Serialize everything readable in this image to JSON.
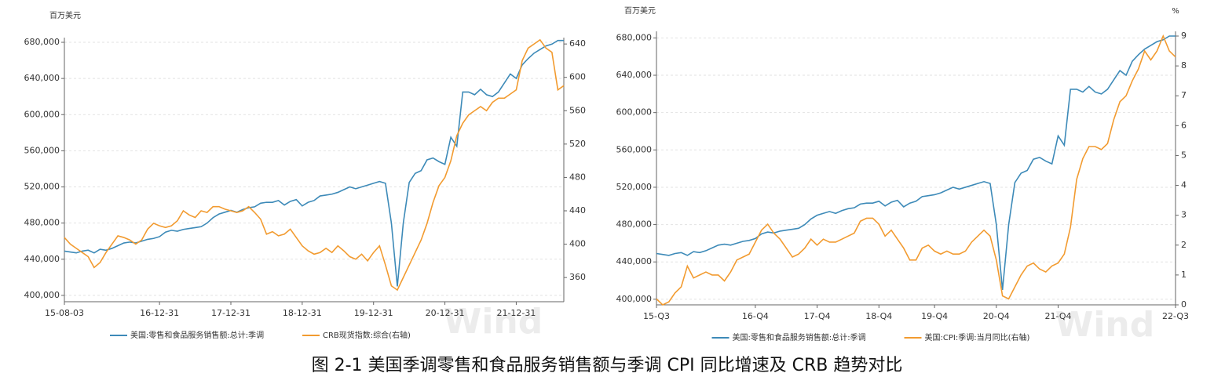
{
  "chart_data": [
    {
      "type": "line",
      "unit_label": "百万美元",
      "watermark": "Wind",
      "grid": true,
      "legend": "bottom",
      "categories": [
        "15-08-03",
        null,
        null,
        null,
        null,
        null,
        null,
        null,
        null,
        null,
        null,
        null,
        null,
        null,
        null,
        null,
        "16-12-31",
        null,
        null,
        null,
        null,
        null,
        null,
        null,
        null,
        null,
        null,
        null,
        "17-12-31",
        null,
        null,
        null,
        null,
        null,
        null,
        null,
        null,
        null,
        null,
        null,
        "18-12-31",
        null,
        null,
        null,
        null,
        null,
        null,
        null,
        null,
        null,
        null,
        null,
        "19-12-31",
        null,
        null,
        null,
        null,
        null,
        null,
        null,
        null,
        null,
        null,
        null,
        "20-12-31",
        null,
        null,
        null,
        null,
        null,
        null,
        null,
        null,
        null,
        null,
        null,
        "21-12-31",
        null,
        null,
        null,
        null,
        null,
        null,
        null,
        null
      ],
      "ylim": [
        393000,
        680000
      ],
      "yticks": [
        {
          "value": 400000,
          "label": "400,000"
        },
        {
          "value": 440000,
          "label": "440,000"
        },
        {
          "value": 480000,
          "label": "480,000"
        },
        {
          "value": 520000,
          "label": "520,000"
        },
        {
          "value": 560000,
          "label": "560,000"
        },
        {
          "value": 600000,
          "label": "600,000"
        },
        {
          "value": 640000,
          "label": "640,000"
        },
        {
          "value": 680000,
          "label": "680,000"
        }
      ],
      "y2lim": [
        331,
        642
      ],
      "y2ticks": [
        360,
        400,
        440,
        480,
        520,
        560,
        600,
        640
      ],
      "series": [
        {
          "name": "美国:零售和食品服务销售额:总计:季调",
          "color": "#3d8ab8",
          "values": [
            449000,
            448000,
            447000,
            449000,
            450000,
            447000,
            451000,
            450000,
            452000,
            455000,
            458000,
            459000,
            458000,
            460000,
            462000,
            463000,
            465000,
            470000,
            472000,
            471000,
            473000,
            474000,
            475000,
            476000,
            480000,
            486000,
            490000,
            492000,
            494000,
            492000,
            495000,
            497000,
            498000,
            502000,
            503000,
            503000,
            505000,
            500000,
            504000,
            506000,
            499000,
            503000,
            505000,
            510000,
            511000,
            512000,
            514000,
            517000,
            520000,
            518000,
            520000,
            522000,
            524000,
            526000,
            524000,
            480000,
            410000,
            480000,
            525000,
            535000,
            538000,
            550000,
            552000,
            548000,
            545000,
            575000,
            565000,
            625000,
            625000,
            622000,
            628000,
            622000,
            620000,
            625000,
            635000,
            645000,
            640000,
            655000,
            662000,
            668000,
            672000,
            676000,
            678000,
            682000,
            682000
          ]
        },
        {
          "name": "CRB现货指数:综合(右轴)",
          "color": "#f29b30",
          "axis": "y2",
          "values": [
            408,
            400,
            395,
            390,
            385,
            372,
            378,
            390,
            400,
            410,
            408,
            405,
            400,
            405,
            418,
            425,
            422,
            420,
            422,
            428,
            440,
            435,
            432,
            440,
            438,
            445,
            445,
            442,
            440,
            438,
            440,
            445,
            438,
            430,
            412,
            415,
            410,
            412,
            418,
            408,
            398,
            392,
            388,
            390,
            395,
            390,
            398,
            392,
            385,
            382,
            388,
            380,
            390,
            398,
            375,
            350,
            345,
            360,
            375,
            390,
            405,
            425,
            450,
            470,
            480,
            500,
            530,
            545,
            555,
            560,
            565,
            560,
            570,
            575,
            575,
            580,
            585,
            620,
            635,
            640,
            645,
            635,
            630,
            585,
            590
          ]
        }
      ]
    },
    {
      "type": "line",
      "unit_label": "百万美元",
      "unit_label_right": "%",
      "watermark": "Wind",
      "grid": true,
      "legend": "bottom",
      "categories": [
        "15-Q3",
        null,
        null,
        null,
        null,
        null,
        null,
        null,
        null,
        null,
        null,
        null,
        null,
        null,
        null,
        null,
        "16-Q4",
        null,
        null,
        null,
        null,
        null,
        null,
        null,
        null,
        null,
        "17-Q4",
        null,
        null,
        null,
        null,
        null,
        null,
        null,
        null,
        null,
        "18-Q4",
        null,
        null,
        null,
        null,
        null,
        null,
        null,
        null,
        "19-Q4",
        null,
        null,
        null,
        null,
        null,
        null,
        null,
        null,
        null,
        "20-Q4",
        null,
        null,
        null,
        null,
        null,
        null,
        null,
        null,
        null,
        "21-Q4",
        null,
        null,
        null,
        null,
        null,
        null,
        null,
        null,
        null,
        null,
        null,
        null,
        null,
        null,
        null,
        null,
        null,
        null,
        "22-Q3"
      ],
      "ylim": [
        394000,
        682000
      ],
      "yticks": [
        {
          "value": 400000,
          "label": "400,000"
        },
        {
          "value": 440000,
          "label": "440,000"
        },
        {
          "value": 480000,
          "label": "480,000"
        },
        {
          "value": 520000,
          "label": "520,000"
        },
        {
          "value": 560000,
          "label": "560,000"
        },
        {
          "value": 600000,
          "label": "600,000"
        },
        {
          "value": 640000,
          "label": "640,000"
        },
        {
          "value": 680000,
          "label": "680,000"
        }
      ],
      "y2lim": [
        0,
        9
      ],
      "y2ticks": [
        0,
        1,
        2,
        3,
        4,
        5,
        6,
        7,
        8,
        9
      ],
      "series": [
        {
          "name": "美国:零售和食品服务销售额:总计:季调",
          "color": "#3d8ab8",
          "values": [
            449000,
            448000,
            447000,
            449000,
            450000,
            447000,
            451000,
            450000,
            452000,
            455000,
            458000,
            459000,
            458000,
            460000,
            462000,
            463000,
            465000,
            470000,
            472000,
            471000,
            473000,
            474000,
            475000,
            476000,
            480000,
            486000,
            490000,
            492000,
            494000,
            492000,
            495000,
            497000,
            498000,
            502000,
            503000,
            503000,
            505000,
            500000,
            504000,
            506000,
            499000,
            503000,
            505000,
            510000,
            511000,
            512000,
            514000,
            517000,
            520000,
            518000,
            520000,
            522000,
            524000,
            526000,
            524000,
            480000,
            410000,
            480000,
            525000,
            535000,
            538000,
            550000,
            552000,
            548000,
            545000,
            575000,
            565000,
            625000,
            625000,
            622000,
            628000,
            622000,
            620000,
            625000,
            635000,
            645000,
            640000,
            655000,
            662000,
            668000,
            672000,
            676000,
            678000,
            682000,
            682000
          ]
        },
        {
          "name": "美国:CPI:季调:当月同比(右轴)",
          "color": "#f29b30",
          "axis": "y2",
          "values": [
            0.2,
            0.0,
            0.1,
            0.4,
            0.6,
            1.3,
            0.9,
            1.0,
            1.1,
            1.0,
            1.0,
            0.8,
            1.1,
            1.5,
            1.6,
            1.7,
            2.1,
            2.5,
            2.7,
            2.4,
            2.2,
            1.9,
            1.6,
            1.7,
            1.9,
            2.2,
            2.0,
            2.2,
            2.1,
            2.1,
            2.2,
            2.3,
            2.4,
            2.8,
            2.9,
            2.9,
            2.7,
            2.3,
            2.5,
            2.2,
            1.9,
            1.5,
            1.5,
            1.9,
            2.0,
            1.8,
            1.7,
            1.8,
            1.7,
            1.7,
            1.8,
            2.1,
            2.3,
            2.5,
            2.3,
            1.5,
            0.3,
            0.2,
            0.6,
            1.0,
            1.3,
            1.4,
            1.2,
            1.1,
            1.3,
            1.4,
            1.7,
            2.6,
            4.2,
            4.9,
            5.3,
            5.3,
            5.2,
            5.4,
            6.2,
            6.8,
            7.0,
            7.5,
            7.9,
            8.5,
            8.2,
            8.5,
            9.0,
            8.5,
            8.3
          ]
        }
      ]
    }
  ],
  "caption": "图 2-1 美国季调零售和食品服务销售额与季调 CPI 同比增速及 CRB 趋势对比"
}
